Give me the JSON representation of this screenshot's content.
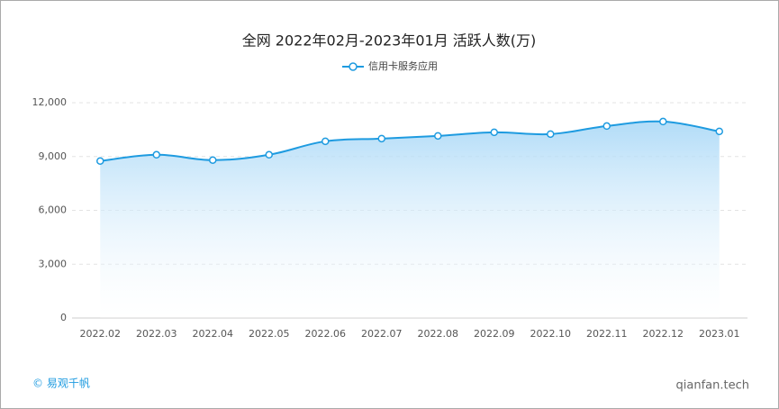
{
  "chart_data": {
    "type": "line",
    "title": "全网 2022年02月-2023年01月 活跃人数(万)",
    "categories": [
      "2022.02",
      "2022.03",
      "2022.04",
      "2022.05",
      "2022.06",
      "2022.07",
      "2022.08",
      "2022.09",
      "2022.10",
      "2022.11",
      "2022.12",
      "2023.01"
    ],
    "series": [
      {
        "name": "信用卡服务应用",
        "color": "#1e9be0",
        "values": [
          8750,
          9100,
          8800,
          9100,
          9850,
          10000,
          10150,
          10350,
          10250,
          10700,
          10950,
          10400
        ]
      }
    ],
    "ylim": [
      0,
      12000
    ],
    "yticks": [
      0,
      {
        "value": 3000,
        "label": "3,000"
      },
      {
        "value": 6000,
        "label": "6,000"
      },
      {
        "value": 9000,
        "label": "9,000"
      },
      {
        "value": 12000,
        "label": "12,000"
      }
    ],
    "grid": true,
    "legend": "top",
    "footer": {
      "brand": "© 易观千帆",
      "site": "qianfan.tech"
    }
  }
}
